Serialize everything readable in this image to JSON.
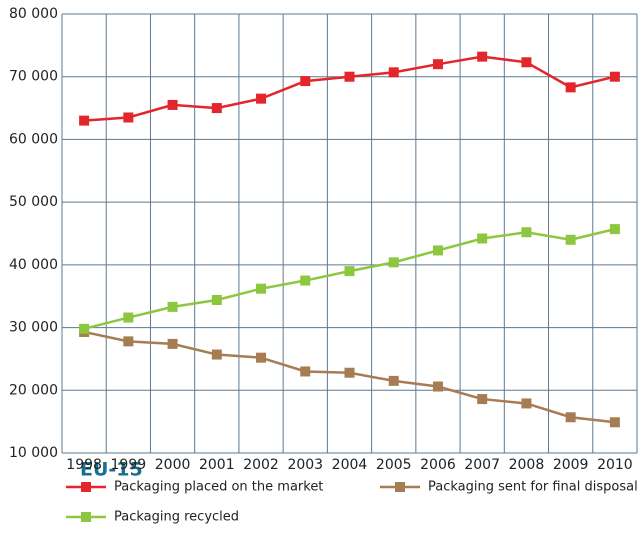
{
  "chart_data": {
    "type": "line",
    "categories": [
      "1998",
      "1999",
      "2000",
      "2001",
      "2002",
      "2003",
      "2004",
      "2005",
      "2006",
      "2007",
      "2008",
      "2009",
      "2010"
    ],
    "series": [
      {
        "name": "Packaging placed on the market",
        "color": "#e3262c",
        "values": [
          63000,
          63500,
          65500,
          65000,
          66500,
          69300,
          70000,
          70700,
          72000,
          73200,
          72300,
          68300,
          70000
        ]
      },
      {
        "name": "Packaging sent for final disposal",
        "color": "#a67c52",
        "values": [
          29300,
          27800,
          27400,
          25700,
          25200,
          23000,
          22800,
          21500,
          20600,
          18600,
          17900,
          15700,
          14900
        ]
      },
      {
        "name": "Packaging recycled",
        "color": "#8dc63f",
        "values": [
          29800,
          31600,
          33300,
          34400,
          36200,
          37500,
          39000,
          40400,
          42300,
          44200,
          45200,
          44000,
          45700
        ]
      }
    ],
    "ylim": [
      10000,
      80000
    ],
    "yticks": [
      {
        "value": 10000,
        "label": "10 000"
      },
      {
        "value": 20000,
        "label": "20 000"
      },
      {
        "value": 30000,
        "label": "30 000"
      },
      {
        "value": 40000,
        "label": "40 000"
      },
      {
        "value": 50000,
        "label": "50 000"
      },
      {
        "value": 60000,
        "label": "60 000"
      },
      {
        "value": 70000,
        "label": "70 000"
      },
      {
        "value": 80000,
        "label": "80 000"
      }
    ],
    "grid": true,
    "legend_title": "EU-15",
    "legend": "bottom"
  }
}
